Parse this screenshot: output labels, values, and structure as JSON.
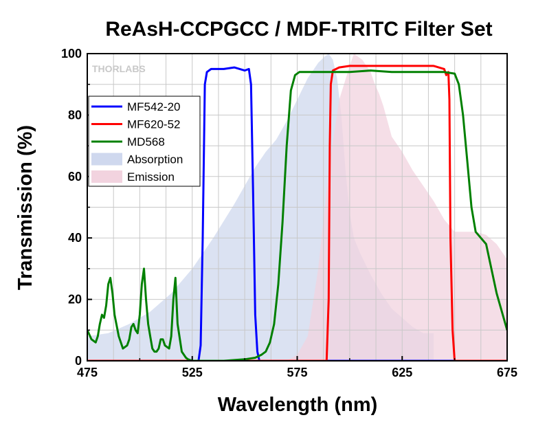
{
  "chart_data": {
    "type": "line",
    "title": "ReAsH-CCPGCC / MDF-TRITC Filter Set",
    "xlabel": "Wavelength (nm)",
    "ylabel": "Transmission (%)",
    "xlim": [
      475,
      675
    ],
    "ylim": [
      0,
      100
    ],
    "x_ticks": [
      "475",
      "525",
      "575",
      "625",
      "675"
    ],
    "y_ticks": [
      "0",
      "20",
      "40",
      "60",
      "80",
      "100"
    ],
    "grid": true,
    "legend_position": "upper-left",
    "watermark": "THORLABS",
    "series": [
      {
        "name": "MF542-20",
        "style": "line",
        "color": "#0000ff",
        "x": [
          475,
          528,
          529,
          530,
          531,
          532,
          534,
          540,
          545,
          550,
          552,
          553,
          554,
          555,
          556,
          557,
          675
        ],
        "y": [
          0,
          0,
          5,
          40,
          90,
          94,
          95,
          95,
          95.5,
          94.5,
          95,
          90,
          55,
          15,
          3,
          0,
          0
        ]
      },
      {
        "name": "MF620-52",
        "style": "line",
        "color": "#ff0000",
        "x": [
          475,
          589,
          590,
          590.5,
          591,
          592,
          595,
          600,
          610,
          620,
          630,
          640,
          645,
          646,
          647,
          647.5,
          648,
          649,
          650,
          675
        ],
        "y": [
          0,
          0,
          20,
          70,
          90,
          94.5,
          95.5,
          96,
          96,
          96,
          96,
          96,
          95,
          93,
          94,
          85,
          40,
          10,
          0,
          0
        ]
      },
      {
        "name": "MD568",
        "style": "line",
        "color": "#008000",
        "x": [
          475,
          477,
          479,
          480,
          481,
          482,
          483,
          484,
          485,
          486,
          487,
          488,
          490,
          492,
          494,
          495,
          496,
          497,
          498,
          499,
          500,
          501,
          502,
          503,
          504,
          505,
          506,
          507,
          508,
          509,
          510,
          511,
          512,
          514,
          515,
          516,
          517,
          518,
          520,
          522,
          523,
          525,
          530,
          540,
          550,
          555,
          558,
          560,
          562,
          564,
          566,
          568,
          570,
          572,
          574,
          576,
          578,
          580,
          590,
          600,
          610,
          620,
          630,
          640,
          645,
          650,
          652,
          654,
          656,
          658,
          660,
          665,
          670,
          675
        ],
        "y": [
          10,
          7,
          6,
          8,
          12,
          15,
          14,
          18,
          25,
          27,
          22,
          15,
          8,
          4,
          5,
          7,
          11,
          12,
          10,
          9,
          15,
          25,
          30,
          20,
          12,
          8,
          4,
          3,
          3,
          4,
          7,
          7,
          5,
          4,
          8,
          20,
          27,
          12,
          3,
          1,
          0.5,
          0,
          0,
          0,
          0.5,
          1,
          2,
          3,
          6,
          12,
          25,
          45,
          70,
          88,
          93,
          94,
          94,
          94,
          94,
          94,
          94.5,
          94,
          94,
          94,
          94,
          93.5,
          90,
          80,
          65,
          50,
          42,
          38,
          22,
          10
        ]
      },
      {
        "name": "Absorption",
        "style": "area",
        "color": "#cfd8ee",
        "x": [
          475,
          485,
          495,
          505,
          515,
          525,
          535,
          545,
          555,
          560,
          565,
          570,
          575,
          580,
          585,
          588,
          590,
          592,
          594,
          596,
          598,
          600,
          602,
          605,
          610,
          615,
          620,
          625,
          630,
          635,
          640
        ],
        "y": [
          8,
          9,
          12,
          16,
          22,
          30,
          40,
          51,
          63,
          68,
          72,
          78,
          85,
          92,
          97,
          99,
          100,
          98,
          92,
          80,
          62,
          48,
          40,
          35,
          28,
          22,
          17,
          14,
          11,
          9,
          9
        ]
      },
      {
        "name": "Emission",
        "style": "area",
        "color": "#f2d3df",
        "x": [
          475,
          570,
          575,
          580,
          585,
          590,
          595,
          600,
          602,
          604,
          606,
          608,
          610,
          612,
          614,
          616,
          618,
          620,
          625,
          630,
          635,
          640,
          645,
          650,
          655,
          660,
          665,
          670,
          675
        ],
        "y": [
          0,
          0,
          2,
          8,
          30,
          62,
          85,
          96,
          100,
          99,
          98,
          96,
          94,
          90,
          87,
          83,
          78,
          73,
          68,
          62,
          57,
          52,
          46,
          42,
          42,
          42,
          41,
          38,
          33
        ]
      }
    ]
  }
}
